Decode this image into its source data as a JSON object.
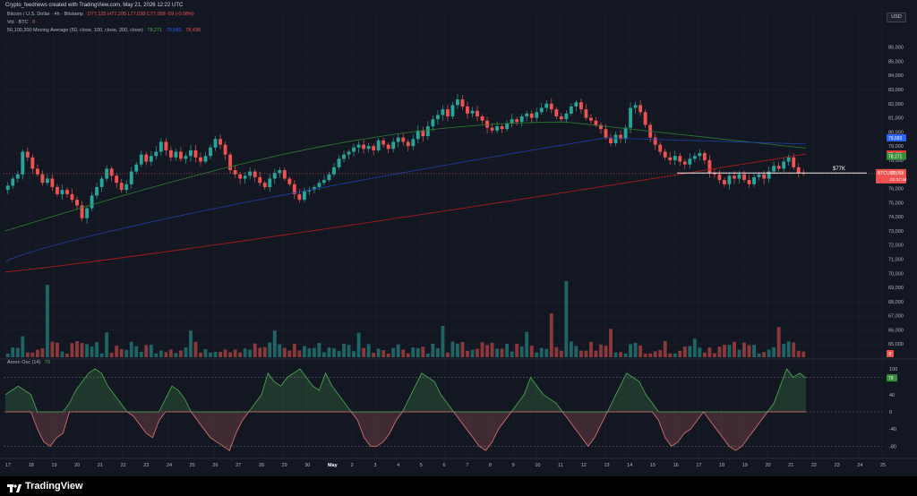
{
  "header": {
    "attribution": "Crypto_feednews created with TradingView.com, May 21, 2026 12:22 UTC",
    "symbol_line": "Bitcoin / U.S. Dollar · 4h · Bitstamp",
    "ohlc": "O77,125  H77,205  L77,038  C77,058  -59 (-0.08%)",
    "vol_label": "Vol · BTC",
    "ma_label": "50,100,200 Moving Average (50, close, 100, close, 200, close)",
    "ma_values": [
      "78,271",
      "79,583",
      "78,438"
    ]
  },
  "currency": "USD",
  "colors": {
    "bg": "#131722",
    "up": "#26a69a",
    "down": "#ef5350",
    "ma50": "#2e7d32",
    "ma100": "#1e3fa8",
    "ma200": "#b71c1c",
    "aroon_up": "#4caf50",
    "aroon_down": "#e57373",
    "grid": "#1f2330",
    "text": "#b2b5be"
  },
  "price_axis": {
    "ticks": [
      "86,000",
      "85,000",
      "84,000",
      "83,000",
      "82,000",
      "81,000",
      "80,000",
      "79,000",
      "78,000",
      "77,000",
      "76,000",
      "75,000",
      "74,000",
      "73,000",
      "72,000",
      "71,000",
      "70,000",
      "69,000",
      "68,000",
      "67,000",
      "66,000",
      "65,000"
    ],
    "min": 64000,
    "max": 86800
  },
  "price_badges": [
    {
      "label": "79,583",
      "value": 79583,
      "color": "#2962ff"
    },
    {
      "label": "78,438",
      "value": 78438,
      "color": "#e53935"
    },
    {
      "label": "78,271",
      "value": 78271,
      "color": "#388e3c"
    },
    {
      "label": "BTCUSD",
      "value": 77058,
      "color": "#ef5350",
      "price": "77,058",
      "countdown": "01:37:44"
    }
  ],
  "annotation": {
    "text": "$77K",
    "value": 77100
  },
  "time_axis": [
    "17",
    "18",
    "19",
    "20",
    "21",
    "22",
    "23",
    "24",
    "25",
    "26",
    "27",
    "28",
    "29",
    "30",
    "May",
    "2",
    "3",
    "4",
    "5",
    "6",
    "7",
    "8",
    "9",
    "10",
    "11",
    "12",
    "13",
    "14",
    "15",
    "16",
    "17",
    "18",
    "19",
    "20",
    "21",
    "22",
    "23",
    "24",
    "25"
  ],
  "aroon": {
    "label": "Aroon Osc (14)",
    "value": "79",
    "axis": [
      "100",
      "80",
      "40",
      "0",
      "-40",
      "-80"
    ],
    "badge": "79"
  },
  "vol_badge": "8",
  "footer": {
    "brand": "TradingView"
  },
  "chart_data": {
    "type": "candlestick",
    "title": "Bitcoin / U.S. Dollar · 4h · Bitstamp",
    "ylim": [
      64000,
      86800
    ],
    "x_range": [
      "Apr 17",
      "May 25"
    ],
    "series_closes": [
      76200,
      76700,
      77000,
      78600,
      78200,
      77400,
      77000,
      76400,
      76700,
      76100,
      75600,
      75900,
      75600,
      75200,
      74800,
      73900,
      74600,
      75500,
      76100,
      76700,
      77400,
      76900,
      76400,
      75900,
      76300,
      77200,
      77700,
      78400,
      77900,
      78300,
      78600,
      79300,
      78700,
      78200,
      78600,
      78100,
      78300,
      78700,
      78200,
      77900,
      78300,
      78900,
      79500,
      79100,
      78400,
      77300,
      77000,
      76700,
      76900,
      77200,
      76800,
      76400,
      76100,
      76700,
      77100,
      77300,
      76700,
      76300,
      75600,
      75200,
      75800,
      75900,
      76100,
      76400,
      76600,
      77000,
      77500,
      78100,
      78400,
      78600,
      78900,
      79100,
      78800,
      79000,
      78700,
      79400,
      79100,
      78800,
      79300,
      79600,
      79300,
      79000,
      79500,
      80100,
      79700,
      80400,
      80900,
      81200,
      81600,
      81100,
      81900,
      82300,
      81800,
      81300,
      81500,
      81100,
      80800,
      80300,
      80100,
      80400,
      80200,
      80600,
      80900,
      80700,
      81100,
      81300,
      81000,
      81400,
      81700,
      82000,
      81600,
      81100,
      80900,
      81300,
      81800,
      82100,
      81600,
      81000,
      80800,
      80500,
      80200,
      79600,
      79200,
      79800,
      79500,
      80300,
      81700,
      81900,
      81400,
      80500,
      79600,
      79100,
      78600,
      78200,
      78000,
      78300,
      77900,
      77700,
      78100,
      78300,
      78500,
      78000,
      77100,
      77000,
      76600,
      76300,
      76900,
      76700,
      77000,
      76600,
      76300,
      76800,
      77000,
      76700,
      77200,
      77600,
      77400,
      77900,
      78200,
      77500,
      77100,
      77058
    ],
    "ma50_range": [
      73000,
      80700
    ],
    "ma100_range": [
      70800,
      79583
    ],
    "ma200_range": [
      70100,
      78438
    ],
    "aroon_values": [
      40,
      50,
      60,
      50,
      40,
      -40,
      -70,
      -80,
      -60,
      -50,
      20,
      50,
      70,
      90,
      100,
      90,
      60,
      40,
      20,
      0,
      -10,
      -30,
      -50,
      -60,
      -20,
      30,
      60,
      50,
      30,
      0,
      -20,
      -40,
      -60,
      -70,
      -80,
      -90,
      -50,
      -20,
      0,
      20,
      40,
      90,
      70,
      60,
      80,
      90,
      100,
      80,
      60,
      50,
      90,
      60,
      40,
      20,
      0,
      -20,
      -60,
      -80,
      -80,
      -70,
      -50,
      -20,
      0,
      30,
      60,
      90,
      80,
      70,
      40,
      20,
      0,
      -20,
      -40,
      -60,
      -80,
      -90,
      -70,
      -40,
      -20,
      0,
      20,
      40,
      80,
      60,
      40,
      30,
      20,
      0,
      -20,
      -40,
      -60,
      -80,
      -60,
      -30,
      0,
      30,
      60,
      90,
      80,
      70,
      40,
      20,
      -20,
      -60,
      -80,
      -70,
      -50,
      -40,
      -20,
      0,
      -20,
      -40,
      -60,
      -80,
      -90,
      -80,
      -60,
      -40,
      -20,
      0,
      20,
      60,
      100,
      80,
      90,
      79
    ],
    "volume_spikes": [
      {
        "index": 0.05,
        "rel": 0.95
      },
      {
        "index": 0.7,
        "rel": 1.0
      },
      {
        "index": 0.68,
        "rel": 0.55
      }
    ]
  }
}
